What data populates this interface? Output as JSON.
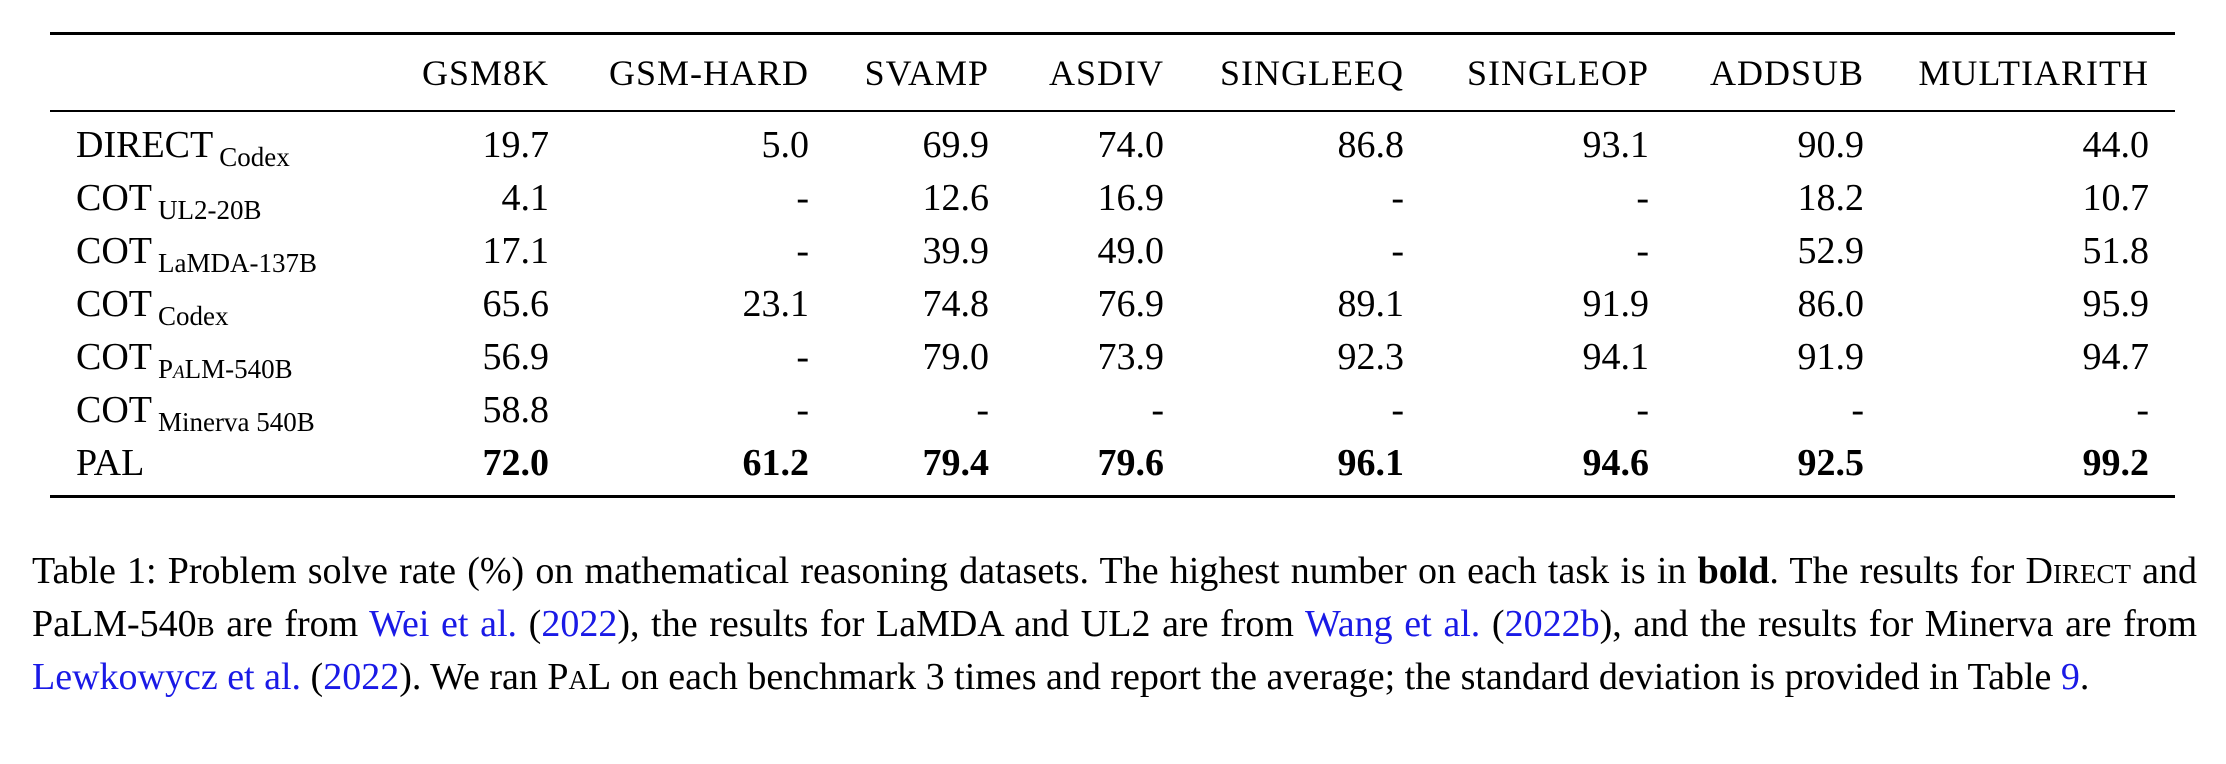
{
  "table": {
    "columns": [
      "GSM8K",
      "GSM-HARD",
      "SVAMP",
      "ASDIV",
      "SINGLEEQ",
      "SINGLEOP",
      "ADDSUB",
      "MULTIARITH"
    ],
    "rows": [
      {
        "method": "DIRECT",
        "model": "Codex",
        "values": [
          "19.7",
          "5.0",
          "69.9",
          "74.0",
          "86.8",
          "93.1",
          "90.9",
          "44.0"
        ]
      },
      {
        "method": "COT",
        "model": "UL2-20B",
        "values": [
          "4.1",
          "-",
          "12.6",
          "16.9",
          "-",
          "-",
          "18.2",
          "10.7"
        ]
      },
      {
        "method": "COT",
        "model": "LaMDA-137B",
        "values": [
          "17.1",
          "-",
          "39.9",
          "49.0",
          "-",
          "-",
          "52.9",
          "51.8"
        ]
      },
      {
        "method": "COT",
        "model": "Codex",
        "values": [
          "65.6",
          "23.1",
          "74.8",
          "76.9",
          "89.1",
          "91.9",
          "86.0",
          "95.9"
        ]
      },
      {
        "method": "COT",
        "model_pre": "P",
        "model_it": "a",
        "model_post": "LM-540B",
        "values": [
          "56.9",
          "-",
          "79.0",
          "73.9",
          "92.3",
          "94.1",
          "91.9",
          "94.7"
        ]
      },
      {
        "method": "COT",
        "model": "Minerva 540B",
        "values": [
          "58.8",
          "-",
          "-",
          "-",
          "-",
          "-",
          "-",
          "-"
        ]
      },
      {
        "method": "PAL",
        "model": "",
        "values": [
          "72.0",
          "61.2",
          "79.4",
          "79.6",
          "96.1",
          "94.6",
          "92.5",
          "99.2"
        ]
      }
    ]
  },
  "caption": {
    "s1": "Table 1: Problem solve rate (%) on mathematical reasoning datasets. The highest number on each task is in ",
    "bold": "bold",
    "s2": ". The results for ",
    "direct": "Direct",
    "s3": " and PaLM-540",
    "b_sc": "b",
    "s4": " are from ",
    "ref1": "Wei et al.",
    "s5": " (",
    "ref1_year": "2022",
    "s6": "), the results for LaMDA and UL2 are from ",
    "ref2": "Wang et al.",
    "s7": " (",
    "ref2_year": "2022b",
    "s8": "), and the results for Minerva are from ",
    "ref3": "Lewkowycz et al.",
    "s9": " (",
    "ref3_year": "2022",
    "s10": "). We ran ",
    "pal": "PaL",
    "s11": " on each benchmark 3 times and report the average; the standard deviation is provided in Table ",
    "ref4": "9",
    "s12": "."
  }
}
